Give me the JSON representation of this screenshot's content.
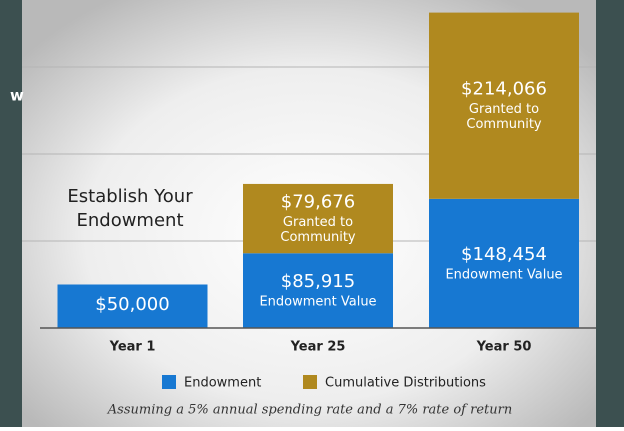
{
  "side_text": "w",
  "chart_data": {
    "type": "stacked_bar",
    "categories": [
      "Year 1",
      "Year 25",
      "Year 50"
    ],
    "series": [
      {
        "name": "Endowment",
        "color": "#1778d2",
        "values": [
          50000,
          85915,
          148454
        ],
        "value_labels": [
          "$50,000",
          "$85,915",
          "$148,454"
        ],
        "segment_labels": [
          null,
          [
            "Endowment Value"
          ],
          [
            "Endowment Value"
          ]
        ]
      },
      {
        "name": "Cumulative Distributions",
        "color": "#b0891f",
        "values": [
          null,
          79676,
          214066
        ],
        "value_labels": [
          null,
          "$79,676",
          "$214,066"
        ],
        "segment_labels": [
          null,
          [
            "Granted to",
            "Community"
          ],
          [
            "Granted to",
            "Community"
          ]
        ]
      }
    ],
    "annotation": [
      "Establish Your",
      "Endowment"
    ],
    "footnote": "Assuming a 5% annual spending rate and a 7% rate of return",
    "ylim": [
      0,
      377000
    ],
    "yticks": [
      0,
      100000,
      200000,
      300000
    ],
    "grid": true
  }
}
